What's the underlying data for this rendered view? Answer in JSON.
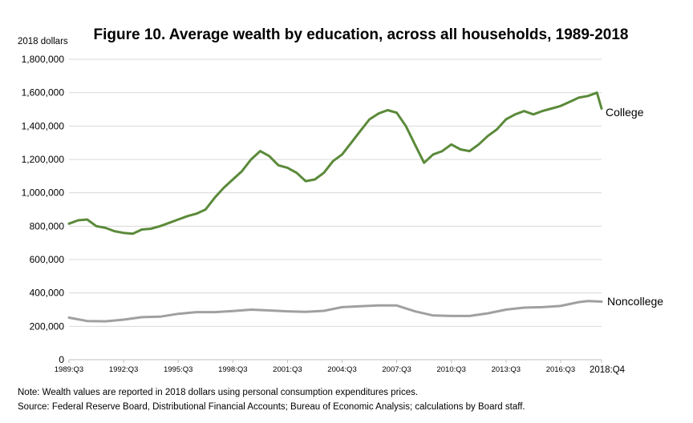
{
  "chart_data": {
    "type": "line",
    "title": "Figure 10.  Average wealth by education, across all households, 1989-2018",
    "ylabel": "2018 dollars",
    "xlabel": "",
    "ylim": [
      0,
      1800000
    ],
    "yticks": [
      0,
      200000,
      400000,
      600000,
      800000,
      1000000,
      1200000,
      1400000,
      1600000,
      1800000
    ],
    "ytick_labels": [
      "0",
      "200,000",
      "400,000",
      "600,000",
      "800,000",
      "1,000,000",
      "1,200,000",
      "1,400,000",
      "1,600,000",
      "1,800,000"
    ],
    "x_start": "1989:Q3",
    "x_end": "2018:Q4",
    "xtick_labels": [
      "1989:Q3",
      "1992:Q3",
      "1995:Q3",
      "1998:Q3",
      "2001:Q3",
      "2004:Q3",
      "2007:Q3",
      "2010:Q3",
      "2013:Q3",
      "2016:Q3",
      "2018:Q4"
    ],
    "grid": "horizontal",
    "legend": "direct labels at line ends",
    "series": [
      {
        "name": "College",
        "color": "#5b8a3a",
        "points": [
          [
            "1989:Q3",
            815000
          ],
          [
            "1990:Q1",
            835000
          ],
          [
            "1990:Q3",
            840000
          ],
          [
            "1991:Q1",
            800000
          ],
          [
            "1991:Q3",
            790000
          ],
          [
            "1992:Q1",
            770000
          ],
          [
            "1992:Q3",
            760000
          ],
          [
            "1993:Q1",
            755000
          ],
          [
            "1993:Q3",
            780000
          ],
          [
            "1994:Q1",
            785000
          ],
          [
            "1994:Q3",
            800000
          ],
          [
            "1995:Q1",
            820000
          ],
          [
            "1995:Q3",
            840000
          ],
          [
            "1996:Q1",
            860000
          ],
          [
            "1996:Q3",
            875000
          ],
          [
            "1997:Q1",
            900000
          ],
          [
            "1997:Q3",
            970000
          ],
          [
            "1998:Q1",
            1030000
          ],
          [
            "1998:Q3",
            1080000
          ],
          [
            "1999:Q1",
            1130000
          ],
          [
            "1999:Q3",
            1200000
          ],
          [
            "2000:Q1",
            1250000
          ],
          [
            "2000:Q3",
            1220000
          ],
          [
            "2001:Q1",
            1165000
          ],
          [
            "2001:Q3",
            1150000
          ],
          [
            "2002:Q1",
            1120000
          ],
          [
            "2002:Q3",
            1070000
          ],
          [
            "2003:Q1",
            1080000
          ],
          [
            "2003:Q3",
            1120000
          ],
          [
            "2004:Q1",
            1190000
          ],
          [
            "2004:Q3",
            1230000
          ],
          [
            "2005:Q1",
            1300000
          ],
          [
            "2005:Q3",
            1370000
          ],
          [
            "2006:Q1",
            1440000
          ],
          [
            "2006:Q3",
            1475000
          ],
          [
            "2007:Q1",
            1495000
          ],
          [
            "2007:Q3",
            1480000
          ],
          [
            "2008:Q1",
            1400000
          ],
          [
            "2008:Q3",
            1290000
          ],
          [
            "2009:Q1",
            1180000
          ],
          [
            "2009:Q3",
            1230000
          ],
          [
            "2010:Q1",
            1250000
          ],
          [
            "2010:Q3",
            1290000
          ],
          [
            "2011:Q1",
            1260000
          ],
          [
            "2011:Q3",
            1250000
          ],
          [
            "2012:Q1",
            1290000
          ],
          [
            "2012:Q3",
            1340000
          ],
          [
            "2013:Q1",
            1380000
          ],
          [
            "2013:Q3",
            1440000
          ],
          [
            "2014:Q1",
            1470000
          ],
          [
            "2014:Q3",
            1490000
          ],
          [
            "2015:Q1",
            1470000
          ],
          [
            "2015:Q3",
            1490000
          ],
          [
            "2016:Q1",
            1505000
          ],
          [
            "2016:Q3",
            1520000
          ],
          [
            "2017:Q1",
            1545000
          ],
          [
            "2017:Q3",
            1570000
          ],
          [
            "2018:Q1",
            1580000
          ],
          [
            "2018:Q3",
            1600000
          ],
          [
            "2018:Q4",
            1505000
          ]
        ]
      },
      {
        "name": "Noncollege",
        "color": "#a0a0a0",
        "points": [
          [
            "1989:Q3",
            252000
          ],
          [
            "1990:Q3",
            232000
          ],
          [
            "1991:Q3",
            230000
          ],
          [
            "1992:Q3",
            240000
          ],
          [
            "1993:Q3",
            255000
          ],
          [
            "1994:Q3",
            258000
          ],
          [
            "1995:Q3",
            275000
          ],
          [
            "1996:Q3",
            285000
          ],
          [
            "1997:Q3",
            285000
          ],
          [
            "1998:Q3",
            292000
          ],
          [
            "1999:Q3",
            300000
          ],
          [
            "2000:Q3",
            295000
          ],
          [
            "2001:Q3",
            290000
          ],
          [
            "2002:Q3",
            287000
          ],
          [
            "2003:Q3",
            293000
          ],
          [
            "2004:Q3",
            315000
          ],
          [
            "2005:Q3",
            320000
          ],
          [
            "2006:Q3",
            325000
          ],
          [
            "2007:Q3",
            325000
          ],
          [
            "2008:Q3",
            290000
          ],
          [
            "2009:Q3",
            265000
          ],
          [
            "2010:Q3",
            262000
          ],
          [
            "2011:Q3",
            262000
          ],
          [
            "2012:Q3",
            278000
          ],
          [
            "2013:Q3",
            300000
          ],
          [
            "2014:Q3",
            312000
          ],
          [
            "2015:Q3",
            315000
          ],
          [
            "2016:Q3",
            322000
          ],
          [
            "2017:Q3",
            345000
          ],
          [
            "2018:Q1",
            352000
          ],
          [
            "2018:Q4",
            348000
          ]
        ]
      }
    ]
  },
  "notes": {
    "note": "Note:  Wealth values are reported in 2018 dollars using personal consumption expenditures prices.",
    "source": "Source:  Federal Reserve Board, Distributional Financial Accounts; Bureau of Economic Analysis; calculations by Board staff."
  }
}
